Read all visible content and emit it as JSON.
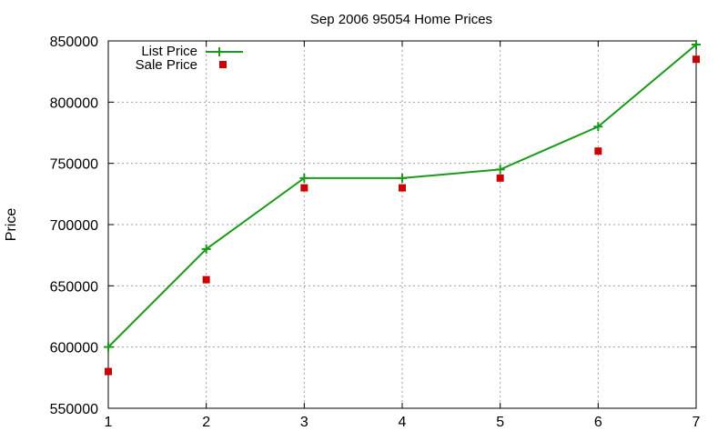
{
  "chart_data": {
    "type": "line",
    "title": "Sep 2006 95054 Home Prices",
    "xlabel": "",
    "ylabel": "Price",
    "x": [
      1,
      2,
      3,
      4,
      5,
      6,
      7
    ],
    "xlim": [
      1,
      7
    ],
    "ylim": [
      550000,
      850000
    ],
    "xticks": [
      "1",
      "2",
      "3",
      "4",
      "5",
      "6",
      "7"
    ],
    "yticks": [
      "550000",
      "600000",
      "650000",
      "700000",
      "750000",
      "800000",
      "850000"
    ],
    "grid": true,
    "legend_position": "top-left",
    "series": [
      {
        "name": "List Price",
        "style": "linespoints",
        "color": "#1a9a1a",
        "values": [
          600000,
          680000,
          738000,
          738000,
          745000,
          780000,
          847000
        ]
      },
      {
        "name": "Sale Price",
        "style": "points",
        "color": "#cc0000",
        "values": [
          580000,
          655000,
          730000,
          730000,
          738000,
          760000,
          835000
        ]
      }
    ]
  }
}
